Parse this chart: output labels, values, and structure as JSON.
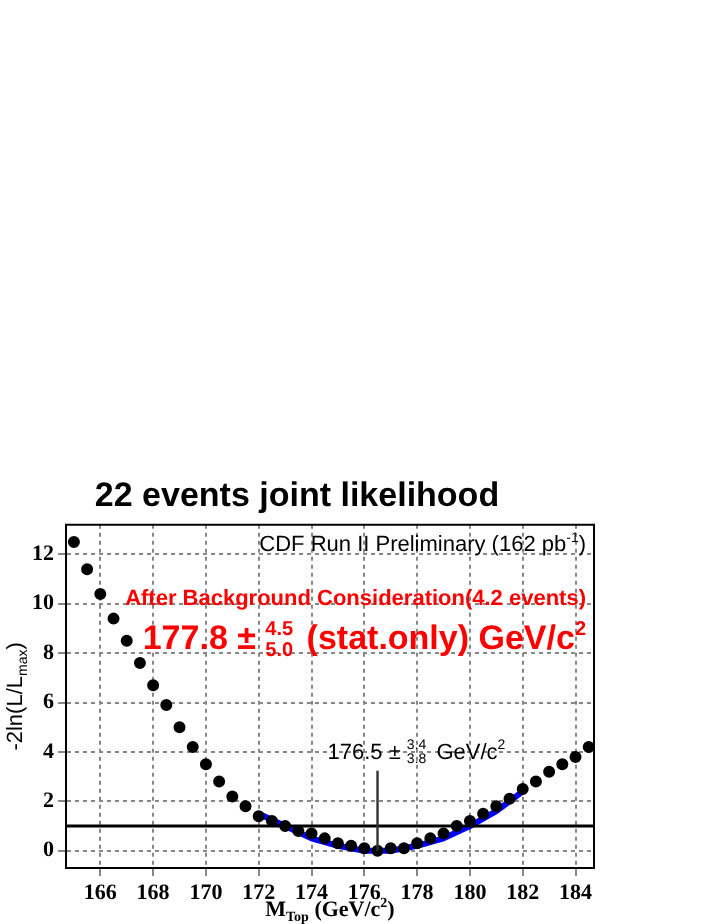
{
  "chart_data": {
    "type": "scatter",
    "title": "22 events joint likelihood",
    "xlabel": "M$_{Top}$ (GeV/c$^{2}$)",
    "ylabel": "-2ln(L/L$_{max}$)",
    "xlim": [
      164.7,
      184.7
    ],
    "xticks": [
      166,
      168,
      170,
      172,
      174,
      176,
      178,
      180,
      182,
      184
    ],
    "ylim": [
      -0.7,
      13.2
    ],
    "yticks": [
      0,
      2,
      4,
      6,
      8,
      10,
      12
    ],
    "grid": true,
    "legend": false,
    "marker": "circle",
    "series": [
      {
        "type": "scatter",
        "color": "#000000",
        "x": [
          165,
          165.5,
          166,
          166.5,
          167,
          167.5,
          168,
          168.5,
          169,
          169.5,
          170,
          170.5,
          171,
          171.5,
          172,
          172.5,
          173,
          173.5,
          174,
          174.5,
          175,
          175.5,
          176,
          176.5,
          177,
          177.5,
          178,
          178.5,
          179,
          179.5,
          180,
          180.5,
          181,
          181.5,
          182,
          182.5,
          183,
          183.5,
          184,
          184.5
        ],
        "values": [
          12.5,
          11.4,
          10.4,
          9.4,
          8.5,
          7.6,
          6.7,
          5.9,
          5.0,
          4.2,
          3.5,
          2.8,
          2.2,
          1.8,
          1.4,
          1.2,
          1.0,
          0.8,
          0.7,
          0.5,
          0.3,
          0.2,
          0.1,
          0.0,
          0.1,
          0.1,
          0.3,
          0.5,
          0.7,
          1.0,
          1.2,
          1.5,
          1.8,
          2.1,
          2.5,
          2.8,
          3.2,
          3.5,
          3.8,
          4.2
        ]
      },
      {
        "type": "line",
        "color": "#0000ff",
        "marker": "none",
        "x": [
          172,
          173,
          174,
          175,
          176,
          176.5,
          177,
          178,
          179,
          180,
          181,
          182
        ],
        "values": [
          1.5,
          1.0,
          0.5,
          0.2,
          0.0,
          0,
          0.0,
          0.2,
          0.5,
          1.0,
          1.6,
          2.4
        ]
      }
    ],
    "ref_lines": [
      {
        "axis": "y",
        "value": 1,
        "color": "#000000"
      }
    ],
    "annotations": [
      "CDF Run II Preliminary (162 pb$^{-1}$)",
      "After Background Consideration(4.2 events)",
      "177.8 ± $^{4.5}$$_{5.0}$ (stat.only) GeV/c$^{2}$",
      {
        "text": "176.5 ± $^{3.4}$$_{3.8}$ GeV/c$^{2}$",
        "x": 176.5,
        "y": 0
      }
    ]
  }
}
